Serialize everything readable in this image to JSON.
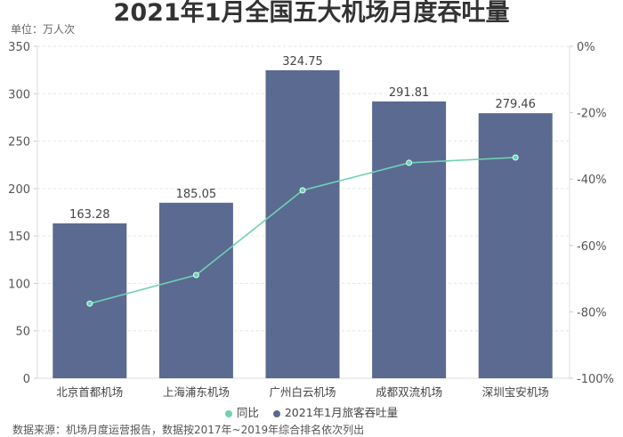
{
  "title": "2021年1月全国五大机场月度吞吐量",
  "unit_label": "单位：万人次",
  "source_note": "数据来源：机场月度运营报告，数据按2017年~2019年综合排名依次列出",
  "colors": {
    "bar": "#5b6a91",
    "line": "#6fd1b4",
    "grid": "#e6e6e6"
  },
  "legend": [
    {
      "label": "同比",
      "color": "#6fd1b4"
    },
    {
      "label": "2021年1月旅客吞吐量",
      "color": "#5b6a91"
    }
  ],
  "chart_data": {
    "type": "bar",
    "title": "2021年1月全国五大机场月度吞吐量",
    "categories": [
      "北京首都机场",
      "上海浦东机场",
      "广州白云机场",
      "成都双流机场",
      "深圳宝安机场"
    ],
    "series": [
      {
        "name": "2021年1月旅客吞吐量",
        "type": "bar",
        "axis": "left",
        "values": [
          163.28,
          185.05,
          324.75,
          291.81,
          279.46
        ]
      },
      {
        "name": "同比",
        "type": "line",
        "axis": "right",
        "values": [
          -77.5,
          -68.9,
          -43.4,
          -35.1,
          -33.5
        ]
      }
    ],
    "ylabel": "万人次",
    "ylim": [
      0,
      350
    ],
    "yticks": [
      0,
      50,
      100,
      150,
      200,
      250,
      300,
      350
    ],
    "y2lim": [
      -100,
      0
    ],
    "y2ticks": [
      "-100%",
      "-80%",
      "-60%",
      "-40%",
      "-20%",
      "0%"
    ],
    "grid": true,
    "legend_position": "bottom"
  }
}
